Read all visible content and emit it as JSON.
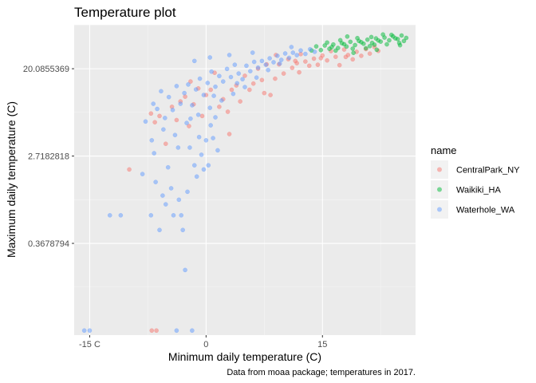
{
  "chart_data": {
    "type": "scatter",
    "title": "Temperature plot",
    "xlabel": "Minimum daily temperature (C)",
    "ylabel": "Maximum daily temperature (C)",
    "caption": "Data from moaa package; temperatures in 2017.",
    "x_scale": "linear",
    "y_scale": "log",
    "xlim": [
      -17,
      27
    ],
    "ylim": [
      0.045,
      55
    ],
    "x_ticks": [
      {
        "value": -15,
        "label": "-15 C"
      },
      {
        "value": 0,
        "label": "0"
      },
      {
        "value": 15,
        "label": "15"
      }
    ],
    "y_ticks": [
      {
        "value": 0.3678794,
        "label": "0.3678794"
      },
      {
        "value": 2.7182818,
        "label": "2.7182818"
      },
      {
        "value": 20.0855369,
        "label": "20.0855369"
      }
    ],
    "grid": true,
    "legend": {
      "title": "name",
      "placement": "right"
    },
    "point_alpha": 0.5,
    "series": [
      {
        "name": "CentralPark_NY",
        "color": "#F8766D",
        "points": [
          [
            -9.9,
            2.0
          ],
          [
            -7.1,
            7.2
          ],
          [
            -6.6,
            5.9
          ],
          [
            -6.0,
            6.8
          ],
          [
            -5.2,
            3.6
          ],
          [
            -4.4,
            8.4
          ],
          [
            -3.8,
            6.2
          ],
          [
            -3.3,
            9.5
          ],
          [
            -2.7,
            10.6
          ],
          [
            -2.2,
            5.4
          ],
          [
            -1.6,
            8.9
          ],
          [
            -1.0,
            12.8
          ],
          [
            -0.5,
            6.8
          ],
          [
            0.0,
            11.0
          ],
          [
            0.6,
            12.4
          ],
          [
            1.1,
            18.3
          ],
          [
            1.7,
            8.4
          ],
          [
            2.2,
            10.0
          ],
          [
            2.8,
            7.5
          ],
          [
            3.3,
            12.4
          ],
          [
            3.9,
            13.7
          ],
          [
            4.4,
            9.5
          ],
          [
            5.0,
            17.1
          ],
          [
            5.6,
            12.4
          ],
          [
            6.1,
            14.3
          ],
          [
            6.7,
            20.1
          ],
          [
            7.2,
            15.5
          ],
          [
            7.8,
            22.2
          ],
          [
            8.3,
            11.0
          ],
          [
            8.9,
            16.0
          ],
          [
            9.4,
            22.2
          ],
          [
            10.0,
            18.0
          ],
          [
            10.6,
            25.0
          ],
          [
            11.1,
            20.5
          ],
          [
            11.7,
            22.8
          ],
          [
            12.2,
            28.1
          ],
          [
            12.8,
            23.7
          ],
          [
            13.3,
            21.5
          ],
          [
            13.9,
            25.3
          ],
          [
            14.4,
            22.0
          ],
          [
            15.0,
            27.2
          ],
          [
            15.6,
            24.3
          ],
          [
            16.1,
            30.1
          ],
          [
            16.7,
            26.4
          ],
          [
            17.2,
            21.8
          ],
          [
            17.8,
            31.2
          ],
          [
            18.3,
            27.5
          ],
          [
            18.9,
            24.9
          ],
          [
            19.4,
            29.6
          ],
          [
            20.0,
            27.0
          ],
          [
            20.6,
            31.5
          ],
          [
            21.1,
            28.4
          ],
          [
            21.7,
            33.0
          ],
          [
            22.2,
            30.2
          ],
          [
            -2.0,
            15.0
          ],
          [
            3.0,
            4.5
          ],
          [
            7.5,
            11.5
          ],
          [
            12.0,
            18.5
          ],
          [
            -7.0,
            0.05
          ],
          [
            -6.4,
            0.05
          ],
          [
            9.0,
            27.5
          ],
          [
            11.5,
            24.0
          ],
          [
            14.8,
            25.6
          ],
          [
            18.0,
            26.3
          ]
        ]
      },
      {
        "name": "Waikiki_HA",
        "color": "#00BA38",
        "points": [
          [
            14.2,
            33.5
          ],
          [
            14.8,
            30.8
          ],
          [
            15.3,
            34.2
          ],
          [
            15.9,
            31.7
          ],
          [
            16.4,
            35.0
          ],
          [
            17.0,
            32.3
          ],
          [
            17.5,
            36.1
          ],
          [
            18.1,
            33.4
          ],
          [
            18.6,
            37.2
          ],
          [
            19.2,
            34.5
          ],
          [
            19.7,
            38.0
          ],
          [
            20.3,
            35.6
          ],
          [
            20.8,
            39.1
          ],
          [
            21.4,
            36.3
          ],
          [
            21.9,
            40.2
          ],
          [
            22.5,
            37.4
          ],
          [
            23.0,
            41.0
          ],
          [
            23.6,
            38.5
          ],
          [
            24.1,
            42.1
          ],
          [
            24.7,
            39.6
          ],
          [
            25.2,
            43.0
          ],
          [
            25.8,
            40.7
          ],
          [
            15.6,
            36.6
          ],
          [
            16.7,
            30.4
          ],
          [
            17.8,
            35.2
          ],
          [
            18.9,
            31.8
          ],
          [
            20.0,
            36.9
          ],
          [
            21.1,
            33.7
          ],
          [
            22.2,
            38.4
          ],
          [
            23.3,
            35.1
          ],
          [
            24.4,
            40.3
          ],
          [
            25.5,
            37.9
          ],
          [
            16.2,
            33.0
          ],
          [
            19.5,
            40.5
          ],
          [
            21.7,
            34.8
          ],
          [
            23.9,
            43.6
          ],
          [
            13.6,
            30.5
          ],
          [
            17.3,
            38.6
          ],
          [
            20.6,
            32.1
          ],
          [
            22.8,
            44.0
          ],
          [
            24.9,
            36.2
          ],
          [
            19.0,
            28.9
          ],
          [
            21.3,
            41.5
          ],
          [
            18.2,
            42.0
          ],
          [
            22.0,
            31.0
          ],
          [
            25.0,
            34.4
          ]
        ]
      },
      {
        "name": "Waterhole_WA",
        "color": "#619CFF",
        "points": [
          [
            -15.7,
            0.05
          ],
          [
            -15.0,
            0.05
          ],
          [
            -12.4,
            0.7
          ],
          [
            -11.0,
            0.7
          ],
          [
            -7.1,
            0.7
          ],
          [
            -7.0,
            3.9
          ],
          [
            -6.5,
            1.5
          ],
          [
            -6.0,
            0.5
          ],
          [
            -5.6,
            1.1
          ],
          [
            -5.2,
            0.9
          ],
          [
            -4.9,
            2.1
          ],
          [
            -4.5,
            1.3
          ],
          [
            -4.2,
            0.7
          ],
          [
            -3.8,
            0.05
          ],
          [
            -3.5,
            1.0
          ],
          [
            -3.2,
            0.7
          ],
          [
            -3.0,
            0.5
          ],
          [
            -2.7,
            0.2
          ],
          [
            -2.4,
            1.2
          ],
          [
            -2.1,
            3.3
          ],
          [
            -1.8,
            0.05
          ],
          [
            -1.5,
            2.2
          ],
          [
            -1.2,
            1.7
          ],
          [
            -0.9,
            4.2
          ],
          [
            -0.6,
            2.8
          ],
          [
            -0.3,
            2.0
          ],
          [
            0.0,
            3.9
          ],
          [
            0.3,
            2.2
          ],
          [
            0.6,
            5.5
          ],
          [
            0.9,
            4.1
          ],
          [
            1.2,
            6.6
          ],
          [
            1.5,
            3.1
          ],
          [
            -6.8,
            9.0
          ],
          [
            -6.3,
            8.0
          ],
          [
            -5.8,
            12.0
          ],
          [
            -5.3,
            6.5
          ],
          [
            -4.8,
            10.5
          ],
          [
            -4.3,
            7.8
          ],
          [
            -3.8,
            13.5
          ],
          [
            -3.3,
            9.0
          ],
          [
            -2.8,
            11.5
          ],
          [
            -2.3,
            14.0
          ],
          [
            -1.8,
            8.7
          ],
          [
            -1.3,
            12.5
          ],
          [
            -0.8,
            16.0
          ],
          [
            -0.3,
            11.0
          ],
          [
            0.2,
            14.5
          ],
          [
            0.7,
            18.8
          ],
          [
            1.2,
            13.3
          ],
          [
            1.7,
            17.0
          ],
          [
            2.2,
            15.0
          ],
          [
            2.7,
            20.0
          ],
          [
            3.2,
            16.6
          ],
          [
            3.7,
            22.0
          ],
          [
            4.2,
            18.0
          ],
          [
            4.7,
            15.8
          ],
          [
            5.2,
            21.5
          ],
          [
            5.7,
            19.0
          ],
          [
            6.2,
            23.5
          ],
          [
            6.7,
            20.6
          ],
          [
            7.2,
            24.0
          ],
          [
            7.7,
            22.0
          ],
          [
            8.2,
            25.5
          ],
          [
            8.7,
            23.3
          ],
          [
            9.2,
            27.0
          ],
          [
            9.7,
            24.6
          ],
          [
            10.2,
            28.5
          ],
          [
            10.7,
            25.8
          ],
          [
            11.2,
            29.0
          ],
          [
            11.7,
            27.4
          ],
          [
            12.2,
            30.5
          ],
          [
            12.8,
            28.2
          ],
          [
            13.4,
            31.4
          ],
          [
            14.0,
            29.6
          ],
          [
            -5.5,
            5.0
          ],
          [
            -4.0,
            4.4
          ],
          [
            -2.5,
            5.8
          ],
          [
            -1.0,
            7.0
          ],
          [
            0.5,
            8.2
          ],
          [
            2.0,
            9.7
          ],
          [
            3.5,
            11.3
          ],
          [
            5.0,
            13.2
          ],
          [
            6.5,
            16.4
          ],
          [
            8.0,
            19.5
          ],
          [
            9.5,
            22.6
          ],
          [
            -7.8,
            6.0
          ],
          [
            -8.2,
            1.8
          ],
          [
            -6.7,
            2.9
          ],
          [
            -3.6,
            3.3
          ],
          [
            -2.0,
            6.4
          ],
          [
            1.0,
            10.8
          ],
          [
            4.0,
            14.4
          ],
          [
            -1.5,
            24.0
          ],
          [
            0.5,
            26.0
          ],
          [
            3.0,
            27.5
          ],
          [
            6.0,
            29.0
          ],
          [
            11.0,
            33.0
          ]
        ]
      }
    ]
  }
}
